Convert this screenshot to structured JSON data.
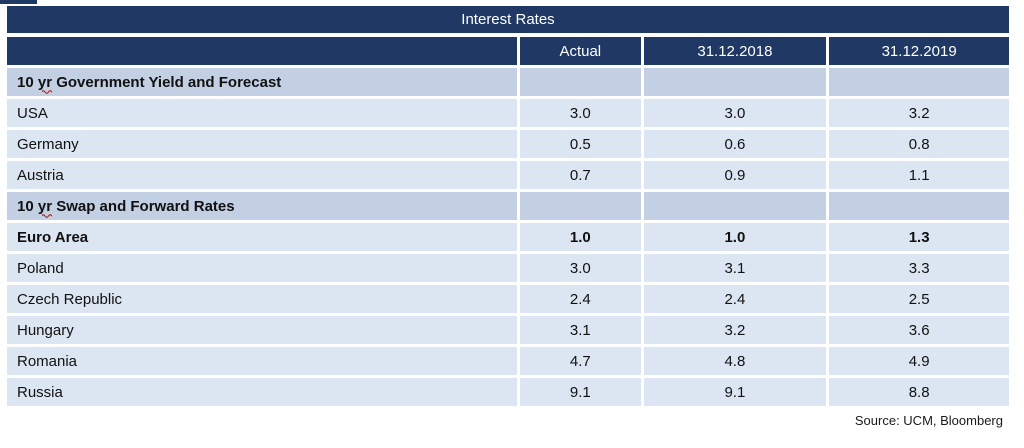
{
  "table": {
    "title": "Interest Rates",
    "columns": [
      "",
      "Actual",
      "31.12.2018",
      "31.12.2019"
    ],
    "rows": [
      {
        "type": "section",
        "label": "10 yr Government Yield and Forecast",
        "values": [
          "",
          "",
          ""
        ]
      },
      {
        "type": "data",
        "label": "USA",
        "values": [
          "3.0",
          "3.0",
          "3.2"
        ]
      },
      {
        "type": "data",
        "label": "Germany",
        "values": [
          "0.5",
          "0.6",
          "0.8"
        ]
      },
      {
        "type": "data",
        "label": "Austria",
        "values": [
          "0.7",
          "0.9",
          "1.1"
        ]
      },
      {
        "type": "section",
        "label": "10 yr Swap and Forward Rates",
        "values": [
          "",
          "",
          ""
        ]
      },
      {
        "type": "data",
        "bold": true,
        "label": "Euro Area",
        "values": [
          "1.0",
          "1.0",
          "1.3"
        ]
      },
      {
        "type": "data",
        "label": "Poland",
        "values": [
          "3.0",
          "3.1",
          "3.3"
        ]
      },
      {
        "type": "data",
        "label": "Czech Republic",
        "values": [
          "2.4",
          "2.4",
          "2.5"
        ]
      },
      {
        "type": "data",
        "label": "Hungary",
        "values": [
          "3.1",
          "3.2",
          "3.6"
        ]
      },
      {
        "type": "data",
        "label": "Romania",
        "values": [
          "4.7",
          "4.8",
          "4.9"
        ]
      },
      {
        "type": "data",
        "label": "Russia",
        "values": [
          "9.1",
          "9.1",
          "8.8"
        ]
      }
    ],
    "misspelled_word": "yr"
  },
  "footer": {
    "source": "Source: UCM, Bloomberg"
  },
  "colors": {
    "header_bg": "#1F3864",
    "header_text": "#FFFFFF",
    "row_bg": "#DCE6F2",
    "section_bg": "#C3CFE3",
    "spellcheck": "#C00000"
  }
}
